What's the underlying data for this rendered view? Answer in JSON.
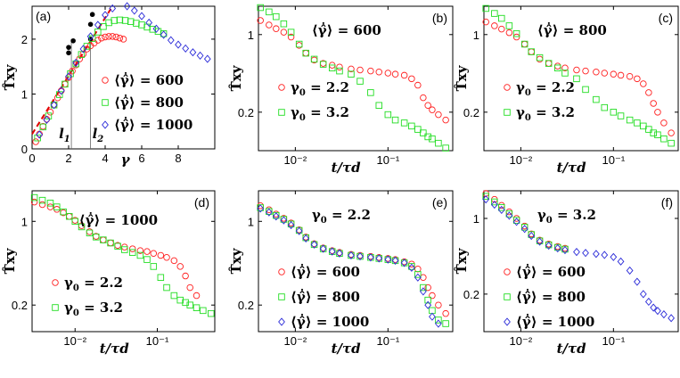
{
  "figure": {
    "colors": {
      "g600": "#ff2020",
      "g800": "#22dd22",
      "g1000": "#2a2ad8",
      "dashed": "#e00000"
    },
    "marker_names": {
      "circle": "o",
      "square": "□",
      "diamond": "◇"
    },
    "y_axis_label": "T̂xy",
    "x_axis_label_log": "t/τd",
    "x_axis_label_strain": "γ"
  },
  "chart_data": [
    {
      "id": "a",
      "type": "scatter",
      "panel_label": "(a)",
      "xlabel": "γ",
      "ylabel": "T̂xy",
      "xlim": [
        0,
        10
      ],
      "ylim": [
        0,
        2.6
      ],
      "xticks": [
        0,
        2,
        4,
        6,
        8
      ],
      "yticks": [
        0,
        1,
        2
      ],
      "xtick_labels": [
        "0",
        "2",
        "4",
        "6",
        "8"
      ],
      "ytick_labels": [
        "0",
        "1",
        "2"
      ],
      "series": [
        {
          "name": "⟨γ̂̇⟩ = 600",
          "marker": "circle",
          "color_key": "g600",
          "x": [
            0.2,
            0.4,
            0.6,
            0.8,
            1.0,
            1.2,
            1.4,
            1.6,
            1.8,
            2.0,
            2.2,
            2.4,
            2.6,
            2.8,
            3.0,
            3.2,
            3.4,
            3.6,
            3.8,
            4.0,
            4.2,
            4.4,
            4.6,
            4.8,
            5.0
          ],
          "y": [
            0.13,
            0.27,
            0.41,
            0.54,
            0.67,
            0.8,
            0.93,
            1.06,
            1.18,
            1.3,
            1.42,
            1.53,
            1.64,
            1.73,
            1.82,
            1.88,
            1.93,
            1.98,
            2.02,
            2.04,
            2.05,
            2.05,
            2.04,
            2.02,
            2.0
          ]
        },
        {
          "name": "⟨γ̂̇⟩ = 800",
          "marker": "square",
          "color_key": "g800",
          "x": [
            0.3,
            0.6,
            0.9,
            1.2,
            1.5,
            1.8,
            2.1,
            2.4,
            2.7,
            3.0,
            3.3,
            3.6,
            3.9,
            4.2,
            4.5,
            4.8,
            5.1,
            5.4,
            5.7,
            6.0,
            6.3,
            6.6,
            6.9,
            7.2
          ],
          "y": [
            0.2,
            0.4,
            0.6,
            0.8,
            0.99,
            1.18,
            1.37,
            1.55,
            1.72,
            1.87,
            2.01,
            2.13,
            2.23,
            2.3,
            2.34,
            2.35,
            2.34,
            2.32,
            2.29,
            2.26,
            2.22,
            2.18,
            2.14,
            2.1
          ]
        },
        {
          "name": "⟨γ̂̇⟩ = 1000",
          "marker": "diamond",
          "color_key": "g1000",
          "x": [
            0.4,
            0.8,
            1.2,
            1.6,
            2.0,
            2.4,
            2.8,
            3.2,
            3.6,
            4.0,
            4.4,
            4.8,
            5.2,
            5.6,
            6.0,
            6.4,
            6.8,
            7.2,
            7.6,
            8.0,
            8.4,
            8.8,
            9.2,
            9.6
          ],
          "y": [
            0.26,
            0.53,
            0.8,
            1.06,
            1.32,
            1.57,
            1.82,
            2.05,
            2.26,
            2.44,
            2.56,
            2.62,
            2.6,
            2.52,
            2.42,
            2.3,
            2.19,
            2.08,
            1.98,
            1.9,
            1.83,
            1.76,
            1.7,
            1.64
          ]
        }
      ],
      "dashed_line": {
        "x": [
          0,
          4.4
        ],
        "y": [
          0.27,
          2.6
        ]
      },
      "black_points": {
        "x": [
          2.0,
          2.0,
          2.25,
          3.2,
          3.2,
          3.3
        ],
        "y": [
          1.75,
          1.85,
          1.97,
          2.0,
          2.27,
          2.45
        ]
      },
      "vlines": [
        {
          "x": 2.15,
          "label": "l",
          "sub": "1"
        },
        {
          "x": 3.2,
          "label": "l",
          "sub": "2"
        }
      ]
    },
    {
      "id": "b",
      "type": "scatter",
      "panel_label": "(b)",
      "xlabel": "t/τd",
      "ylabel": "T̂xy",
      "xscale": "log",
      "yscale": "log",
      "xlim": [
        0.004,
        0.5
      ],
      "ylim": [
        0.09,
        1.8
      ],
      "xticks": [
        0.01,
        0.1
      ],
      "yticks": [
        1,
        0.2
      ],
      "xtick_labels": [
        "10⁻²",
        "10⁻¹"
      ],
      "ytick_labels": [
        "1",
        "0.2"
      ],
      "title": "⟨γ̂̇⟩ = 600",
      "series": [
        {
          "name": "γ0 = 2.2",
          "marker": "circle",
          "color_key": "g600",
          "x": [
            0.0042,
            0.0052,
            0.0062,
            0.0075,
            0.009,
            0.011,
            0.013,
            0.016,
            0.02,
            0.025,
            0.03,
            0.04,
            0.05,
            0.065,
            0.08,
            0.1,
            0.12,
            0.15,
            0.18,
            0.21,
            0.24,
            0.27,
            0.3,
            0.35,
            0.42
          ],
          "y": [
            1.34,
            1.22,
            1.13,
            1.05,
            0.95,
            0.8,
            0.68,
            0.59,
            0.55,
            0.53,
            0.51,
            0.49,
            0.48,
            0.47,
            0.46,
            0.45,
            0.44,
            0.43,
            0.4,
            0.35,
            0.27,
            0.23,
            0.21,
            0.19,
            0.17
          ]
        },
        {
          "name": "γ0 = 3.2",
          "marker": "square",
          "color_key": "g800",
          "x": [
            0.0042,
            0.0052,
            0.0062,
            0.0075,
            0.009,
            0.011,
            0.013,
            0.016,
            0.02,
            0.025,
            0.03,
            0.04,
            0.05,
            0.065,
            0.08,
            0.1,
            0.12,
            0.15,
            0.18,
            0.21,
            0.24,
            0.27,
            0.3,
            0.35,
            0.42
          ],
          "y": [
            1.75,
            1.6,
            1.45,
            1.25,
            1.05,
            0.82,
            0.68,
            0.6,
            0.54,
            0.5,
            0.47,
            0.44,
            0.38,
            0.3,
            0.23,
            0.19,
            0.17,
            0.16,
            0.15,
            0.14,
            0.13,
            0.12,
            0.115,
            0.105,
            0.095
          ]
        }
      ]
    },
    {
      "id": "c",
      "type": "scatter",
      "panel_label": "(c)",
      "xlabel": "t/τd",
      "ylabel": "T̂xy",
      "xscale": "log",
      "yscale": "log",
      "xlim": [
        0.004,
        0.5
      ],
      "ylim": [
        0.09,
        1.8
      ],
      "xticks": [
        0.01,
        0.1
      ],
      "yticks": [
        1,
        0.2
      ],
      "xtick_labels": [
        "10⁻²",
        "10⁻¹"
      ],
      "ytick_labels": [
        "1",
        "0.2"
      ],
      "title": "⟨γ̂̇⟩ = 800",
      "series": [
        {
          "name": "γ0 = 2.2",
          "marker": "circle",
          "color_key": "g600",
          "x": [
            0.0042,
            0.0052,
            0.0062,
            0.0075,
            0.009,
            0.011,
            0.013,
            0.016,
            0.02,
            0.025,
            0.03,
            0.04,
            0.05,
            0.065,
            0.08,
            0.1,
            0.12,
            0.15,
            0.18,
            0.21,
            0.24,
            0.27,
            0.3,
            0.35,
            0.42
          ],
          "y": [
            1.3,
            1.2,
            1.12,
            1.04,
            0.95,
            0.82,
            0.7,
            0.6,
            0.55,
            0.52,
            0.5,
            0.48,
            0.47,
            0.46,
            0.45,
            0.44,
            0.43,
            0.42,
            0.4,
            0.36,
            0.3,
            0.24,
            0.2,
            0.16,
            0.13
          ]
        },
        {
          "name": "γ0 = 3.2",
          "marker": "square",
          "color_key": "g800",
          "x": [
            0.0042,
            0.0052,
            0.0062,
            0.0075,
            0.009,
            0.011,
            0.013,
            0.016,
            0.02,
            0.025,
            0.03,
            0.04,
            0.05,
            0.065,
            0.08,
            0.1,
            0.12,
            0.15,
            0.18,
            0.21,
            0.24,
            0.27,
            0.3,
            0.35,
            0.42
          ],
          "y": [
            1.72,
            1.55,
            1.4,
            1.2,
            1.02,
            0.82,
            0.7,
            0.62,
            0.55,
            0.5,
            0.45,
            0.4,
            0.32,
            0.26,
            0.22,
            0.2,
            0.185,
            0.17,
            0.16,
            0.15,
            0.14,
            0.13,
            0.125,
            0.115,
            0.105
          ]
        }
      ]
    },
    {
      "id": "d",
      "type": "scatter",
      "panel_label": "(d)",
      "xlabel": "t/τd",
      "ylabel": "T̂xy",
      "xscale": "log",
      "yscale": "log",
      "xlim": [
        0.003,
        0.5
      ],
      "ylim": [
        0.12,
        1.8
      ],
      "xticks": [
        0.01,
        0.1
      ],
      "yticks": [
        1,
        0.2
      ],
      "xtick_labels": [
        "10⁻²",
        "10⁻¹"
      ],
      "ytick_labels": [
        "1",
        "0.2"
      ],
      "title": "⟨γ̂̇⟩ = 1000",
      "series": [
        {
          "name": "γ0 = 2.2",
          "marker": "circle",
          "color_key": "g600",
          "x": [
            0.0032,
            0.004,
            0.005,
            0.006,
            0.0072,
            0.0085,
            0.01,
            0.012,
            0.015,
            0.018,
            0.022,
            0.027,
            0.033,
            0.04,
            0.05,
            0.062,
            0.075,
            0.09,
            0.11,
            0.13,
            0.16,
            0.19,
            0.22,
            0.25,
            0.3
          ],
          "y": [
            1.45,
            1.38,
            1.32,
            1.26,
            1.18,
            1.1,
            1.02,
            0.92,
            0.82,
            0.75,
            0.7,
            0.66,
            0.63,
            0.61,
            0.59,
            0.57,
            0.56,
            0.54,
            0.52,
            0.5,
            0.47,
            0.42,
            0.35,
            0.28,
            0.24
          ]
        },
        {
          "name": "γ0 = 3.2",
          "marker": "square",
          "color_key": "g800",
          "x": [
            0.0032,
            0.004,
            0.005,
            0.006,
            0.0072,
            0.0085,
            0.01,
            0.012,
            0.015,
            0.018,
            0.022,
            0.027,
            0.033,
            0.04,
            0.05,
            0.062,
            0.075,
            0.09,
            0.11,
            0.13,
            0.16,
            0.19,
            0.22,
            0.25,
            0.3,
            0.36,
            0.45
          ],
          "y": [
            1.58,
            1.5,
            1.42,
            1.32,
            1.2,
            1.1,
            1.0,
            0.9,
            0.8,
            0.74,
            0.7,
            0.66,
            0.62,
            0.58,
            0.55,
            0.52,
            0.48,
            0.42,
            0.34,
            0.28,
            0.24,
            0.22,
            0.21,
            0.2,
            0.19,
            0.18,
            0.17
          ]
        }
      ]
    },
    {
      "id": "e",
      "type": "scatter",
      "panel_label": "(e)",
      "xlabel": "t/τd",
      "ylabel": "T̂xy",
      "xscale": "log",
      "yscale": "log",
      "xlim": [
        0.004,
        0.5
      ],
      "ylim": [
        0.12,
        1.8
      ],
      "xticks": [
        0.01,
        0.1
      ],
      "yticks": [
        1,
        0.2
      ],
      "xtick_labels": [
        "10⁻²",
        "10⁻¹"
      ],
      "ytick_labels": [
        "1",
        "0.2"
      ],
      "title": "γ0 = 2.2",
      "series": [
        {
          "name": "⟨γ̂̇⟩ = 600",
          "marker": "circle",
          "color_key": "g600",
          "x": [
            0.0042,
            0.0052,
            0.0062,
            0.0075,
            0.009,
            0.011,
            0.013,
            0.016,
            0.02,
            0.025,
            0.03,
            0.04,
            0.05,
            0.065,
            0.08,
            0.1,
            0.12,
            0.15,
            0.18,
            0.21,
            0.24,
            0.27,
            0.3,
            0.35,
            0.42
          ],
          "y": [
            1.35,
            1.25,
            1.15,
            1.06,
            0.97,
            0.85,
            0.74,
            0.65,
            0.6,
            0.57,
            0.55,
            0.53,
            0.52,
            0.51,
            0.5,
            0.49,
            0.48,
            0.46,
            0.44,
            0.4,
            0.34,
            0.28,
            0.24,
            0.2,
            0.17
          ]
        },
        {
          "name": "⟨γ̂̇⟩ = 800",
          "marker": "square",
          "color_key": "g800",
          "x": [
            0.0042,
            0.0052,
            0.0062,
            0.0075,
            0.009,
            0.011,
            0.013,
            0.016,
            0.02,
            0.025,
            0.03,
            0.04,
            0.05,
            0.065,
            0.08,
            0.1,
            0.12,
            0.15,
            0.18,
            0.21,
            0.24,
            0.27,
            0.3,
            0.35,
            0.42
          ],
          "y": [
            1.3,
            1.21,
            1.12,
            1.04,
            0.95,
            0.84,
            0.73,
            0.64,
            0.59,
            0.56,
            0.54,
            0.52,
            0.51,
            0.5,
            0.49,
            0.48,
            0.47,
            0.45,
            0.42,
            0.36,
            0.28,
            0.22,
            0.18,
            0.15,
            0.14
          ]
        },
        {
          "name": "⟨γ̂̇⟩ = 1000",
          "marker": "diamond",
          "color_key": "g1000",
          "x": [
            0.0042,
            0.0052,
            0.0062,
            0.0075,
            0.009,
            0.011,
            0.013,
            0.016,
            0.02,
            0.025,
            0.03,
            0.04,
            0.05,
            0.065,
            0.08,
            0.1,
            0.12,
            0.15,
            0.18,
            0.21,
            0.24,
            0.27,
            0.3,
            0.35
          ],
          "y": [
            1.28,
            1.19,
            1.1,
            1.02,
            0.93,
            0.83,
            0.72,
            0.64,
            0.59,
            0.56,
            0.54,
            0.52,
            0.51,
            0.5,
            0.49,
            0.48,
            0.47,
            0.45,
            0.41,
            0.34,
            0.26,
            0.2,
            0.16,
            0.14
          ]
        }
      ]
    },
    {
      "id": "f",
      "type": "scatter",
      "panel_label": "(f)",
      "xlabel": "t/τd",
      "ylabel": "T̂xy",
      "xscale": "log",
      "yscale": "log",
      "xlim": [
        0.004,
        0.5
      ],
      "ylim": [
        0.09,
        1.8
      ],
      "xticks": [
        0.01,
        0.1
      ],
      "yticks": [
        1,
        0.2
      ],
      "xtick_labels": [
        "10⁻²",
        "10⁻¹"
      ],
      "ytick_labels": [
        "1",
        "0.2"
      ],
      "title": "γ0 = 3.2",
      "series": [
        {
          "name": "⟨γ̂̇⟩ = 600",
          "marker": "circle",
          "color_key": "g600",
          "x": [
            0.0042,
            0.0052,
            0.0062,
            0.0075,
            0.009,
            0.011,
            0.013,
            0.016,
            0.02,
            0.025,
            0.03
          ],
          "y": [
            1.7,
            1.5,
            1.32,
            1.15,
            1.0,
            0.85,
            0.72,
            0.63,
            0.58,
            0.55,
            0.53
          ]
        },
        {
          "name": "⟨γ̂̇⟩ = 800",
          "marker": "square",
          "color_key": "g800",
          "x": [
            0.0042,
            0.0052,
            0.0062,
            0.0075,
            0.009,
            0.011,
            0.013,
            0.016,
            0.02,
            0.025,
            0.03
          ],
          "y": [
            1.6,
            1.42,
            1.26,
            1.1,
            0.96,
            0.83,
            0.71,
            0.62,
            0.57,
            0.54,
            0.52
          ]
        },
        {
          "name": "⟨γ̂̇⟩ = 1000",
          "marker": "diamond",
          "color_key": "g1000",
          "x": [
            0.0042,
            0.0052,
            0.0062,
            0.0075,
            0.009,
            0.011,
            0.013,
            0.016,
            0.02,
            0.025,
            0.03,
            0.04,
            0.05,
            0.065,
            0.08,
            0.1,
            0.12,
            0.15,
            0.18,
            0.21,
            0.24,
            0.27,
            0.3,
            0.35,
            0.42
          ],
          "y": [
            1.5,
            1.34,
            1.2,
            1.06,
            0.93,
            0.8,
            0.69,
            0.61,
            0.56,
            0.53,
            0.51,
            0.49,
            0.48,
            0.47,
            0.46,
            0.44,
            0.4,
            0.33,
            0.26,
            0.2,
            0.17,
            0.15,
            0.14,
            0.13,
            0.12
          ]
        }
      ]
    }
  ]
}
